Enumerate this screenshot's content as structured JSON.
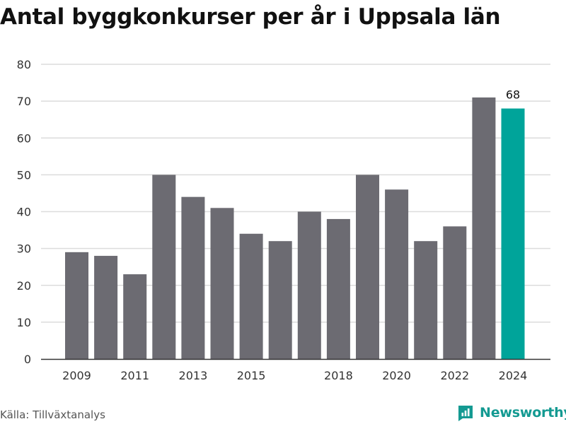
{
  "title": "Antal byggkonkurser per år i Uppsala län",
  "source": "Källa: Tillväxtanalys",
  "brand": {
    "name": "Newsworthy",
    "icon": "newsworthy-logo-icon",
    "color": "#149a92"
  },
  "colors": {
    "bar": "#6c6b72",
    "highlight": "#00a49a",
    "grid": "#dcdcdc",
    "axis": "#333333",
    "text": "#333333"
  },
  "chart_data": {
    "type": "bar",
    "categories": [
      "2009",
      "2010",
      "2011",
      "2012",
      "2013",
      "2014",
      "2015",
      "2016",
      "2017",
      "2018",
      "2019",
      "2020",
      "2021",
      "2022",
      "2023",
      "2024"
    ],
    "values": [
      29,
      28,
      23,
      50,
      44,
      41,
      34,
      32,
      40,
      38,
      50,
      46,
      32,
      36,
      71,
      68
    ],
    "x_tick_labels": [
      "2009",
      "2011",
      "2013",
      "2015",
      "2018",
      "2020",
      "2022",
      "2024"
    ],
    "y_ticks": [
      0,
      10,
      20,
      30,
      40,
      50,
      60,
      70,
      80
    ],
    "ylim": [
      0,
      80
    ],
    "highlight_category": "2024",
    "data_labels": [
      {
        "category": "2024",
        "text": "68"
      }
    ],
    "grid": true,
    "legend": "none"
  }
}
